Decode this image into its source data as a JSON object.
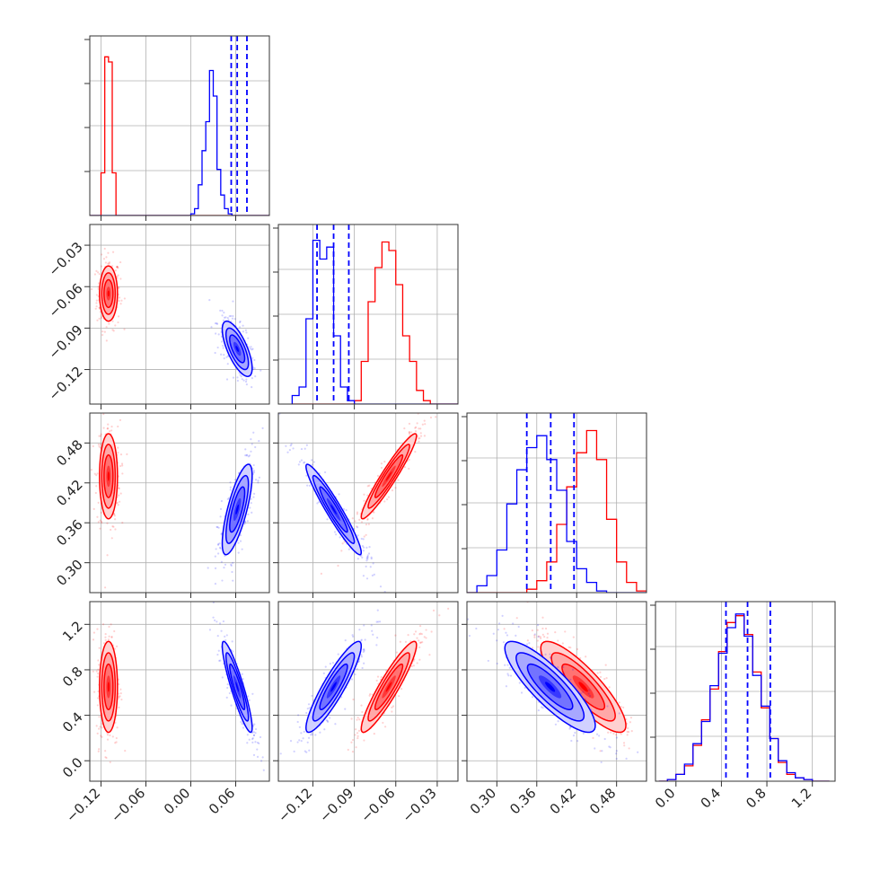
{
  "chart_data": {
    "type": "corner",
    "colors": {
      "series_a": "#ff0000",
      "series_b": "#0000ff",
      "grid": "#b0b0b0"
    },
    "series": [
      {
        "color": "#ff0000",
        "mean": [
          -0.11,
          -0.065,
          0.43,
          0.65
        ],
        "sd": [
          0.006,
          0.01,
          0.032,
          0.2
        ],
        "corr": {
          "1-0": 0.0,
          "2-0": 0.0,
          "2-1": 0.95,
          "3-0": 0.0,
          "3-1": 0.92,
          "3-2": -0.85
        }
      },
      {
        "color": "#0000ff",
        "mean": [
          0.062,
          -0.105,
          0.38,
          0.65
        ],
        "sd": [
          0.01,
          0.01,
          0.034,
          0.2
        ],
        "corr": {
          "1-0": -0.7,
          "2-0": 0.75,
          "2-1": -0.95,
          "3-0": -0.9,
          "3-1": 0.9,
          "3-2": -0.85
        }
      }
    ],
    "quantile_lines": [
      [
        0.054,
        0.062,
        0.075
      ],
      [
        -0.117,
        -0.105,
        -0.094
      ],
      [
        0.345,
        0.381,
        0.416
      ],
      [
        0.44,
        0.63,
        0.83
      ]
    ],
    "histograms": [
      {
        "bins": [
          -0.135,
          -0.13,
          -0.125,
          -0.12,
          -0.115,
          -0.11,
          -0.105,
          -0.1,
          -0.095,
          -0.09,
          -0.085,
          -0.08,
          -0.075,
          -0.07,
          -0.065,
          -0.06,
          -0.055,
          -0.05,
          -0.045,
          -0.04,
          -0.035,
          -0.03,
          -0.025,
          -0.02,
          -0.015,
          -0.01,
          -0.005,
          0.0,
          0.005,
          0.01,
          0.015,
          0.02,
          0.025,
          0.03,
          0.035,
          0.04,
          0.045,
          0.05,
          0.055,
          0.06,
          0.065,
          0.07,
          0.075,
          0.08,
          0.085,
          0.09,
          0.095,
          0.1,
          0.105
        ],
        "red": [
          0,
          0,
          0,
          0.25,
          0.93,
          0.9,
          0.25,
          0,
          0,
          0,
          0,
          0,
          0,
          0,
          0,
          0,
          0,
          0,
          0,
          0,
          0,
          0,
          0,
          0,
          0,
          0,
          0,
          0,
          0,
          0,
          0,
          0,
          0,
          0,
          0,
          0,
          0,
          0,
          0,
          0,
          0,
          0,
          0,
          0,
          0,
          0,
          0,
          0
        ],
        "blue": [
          0,
          0,
          0,
          0,
          0,
          0,
          0,
          0,
          0,
          0,
          0,
          0,
          0,
          0,
          0,
          0,
          0,
          0,
          0,
          0,
          0,
          0,
          0,
          0,
          0,
          0,
          0,
          0.01,
          0.04,
          0.18,
          0.38,
          0.55,
          0.85,
          0.7,
          0.27,
          0.12,
          0.04,
          0.01,
          0,
          0,
          0,
          0,
          0,
          0,
          0,
          0,
          0,
          0
        ]
      },
      {
        "bins": [
          -0.135,
          -0.13,
          -0.125,
          -0.12,
          -0.115,
          -0.11,
          -0.105,
          -0.1,
          -0.095,
          -0.09,
          -0.085,
          -0.08,
          -0.075,
          -0.07,
          -0.065,
          -0.06,
          -0.055,
          -0.05,
          -0.045,
          -0.04,
          -0.035,
          -0.03,
          -0.025,
          -0.02,
          -0.015
        ],
        "red": [
          0,
          0,
          0,
          0,
          0,
          0,
          0,
          0,
          0,
          0.02,
          0.25,
          0.6,
          0.8,
          0.95,
          0.9,
          0.7,
          0.4,
          0.25,
          0.08,
          0.02,
          0,
          0,
          0,
          0
        ],
        "blue": [
          0.05,
          0.1,
          0.5,
          0.96,
          0.85,
          0.92,
          0.4,
          0.1,
          0.02,
          0,
          0,
          0,
          0,
          0,
          0,
          0,
          0,
          0,
          0,
          0,
          0,
          0,
          0,
          0
        ]
      },
      {
        "bins": [
          0.255,
          0.27,
          0.285,
          0.3,
          0.315,
          0.33,
          0.345,
          0.36,
          0.375,
          0.39,
          0.405,
          0.42,
          0.435,
          0.45,
          0.465,
          0.48,
          0.495,
          0.51,
          0.525
        ],
        "red": [
          0,
          0,
          0,
          0,
          0,
          0,
          0.02,
          0.07,
          0.18,
          0.4,
          0.62,
          0.82,
          0.95,
          0.78,
          0.43,
          0.18,
          0.06,
          0.01
        ],
        "blue": [
          0,
          0.04,
          0.1,
          0.25,
          0.52,
          0.72,
          0.85,
          0.92,
          0.78,
          0.6,
          0.3,
          0.14,
          0.06,
          0.01,
          0,
          0,
          0,
          0
        ]
      },
      {
        "bins": [
          -0.15,
          -0.075,
          0.0,
          0.075,
          0.15,
          0.225,
          0.3,
          0.375,
          0.45,
          0.525,
          0.6,
          0.675,
          0.75,
          0.825,
          0.9,
          0.975,
          1.05,
          1.125,
          1.2,
          1.275,
          1.35
        ],
        "red": [
          0,
          0.01,
          0.04,
          0.09,
          0.21,
          0.36,
          0.54,
          0.76,
          0.93,
          0.97,
          0.86,
          0.64,
          0.43,
          0.25,
          0.11,
          0.04,
          0.02,
          0.01,
          0,
          0
        ],
        "blue": [
          0,
          0.01,
          0.04,
          0.1,
          0.22,
          0.35,
          0.56,
          0.75,
          0.9,
          0.98,
          0.85,
          0.62,
          0.44,
          0.25,
          0.12,
          0.05,
          0.02,
          0.01,
          0,
          0
        ]
      }
    ],
    "axis_ranges": [
      [
        -0.135,
        0.105
      ],
      [
        -0.145,
        -0.015
      ],
      [
        0.255,
        0.525
      ],
      [
        -0.18,
        1.4
      ]
    ],
    "ticks": [
      {
        "values": [
          -0.12,
          -0.06,
          0.0,
          0.06
        ],
        "labels": [
          "−0.12",
          "−0.06",
          "0.00",
          "0.06"
        ]
      },
      {
        "values": [
          -0.12,
          -0.09,
          -0.06,
          -0.03
        ],
        "labels": [
          "−0.12",
          "−0.09",
          "−0.06",
          "−0.03"
        ]
      },
      {
        "values": [
          0.3,
          0.36,
          0.42,
          0.48
        ],
        "labels": [
          "0.30",
          "0.36",
          "0.42",
          "0.48"
        ]
      },
      {
        "values": [
          0.0,
          0.4,
          0.8,
          1.2
        ],
        "labels": [
          "0.0",
          "0.4",
          "0.8",
          "1.2"
        ]
      }
    ],
    "grid": true,
    "legend": "none"
  }
}
